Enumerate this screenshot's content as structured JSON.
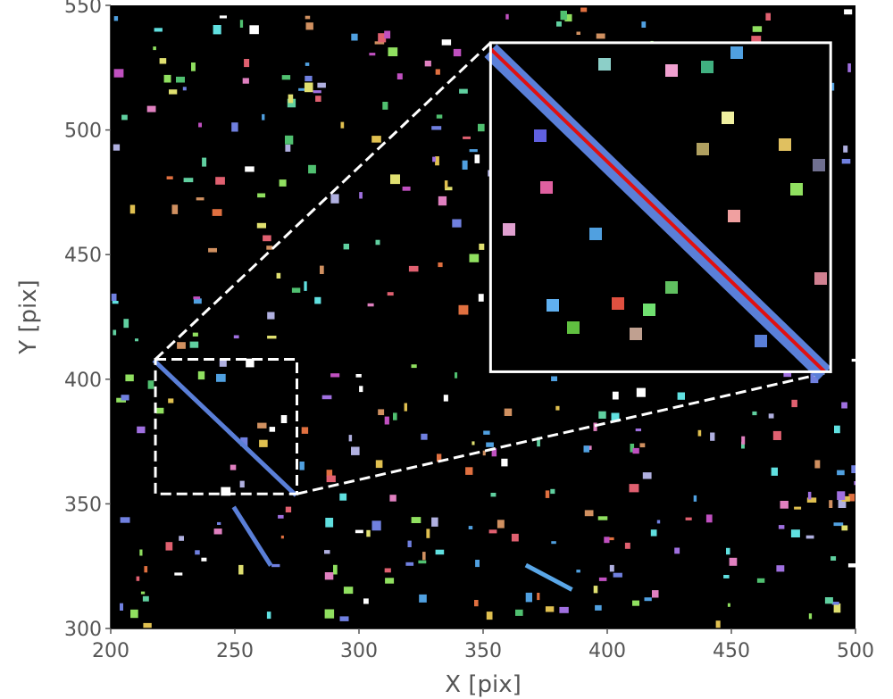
{
  "chart_data": {
    "type": "scatter",
    "title": "",
    "xlabel": "X [pix]",
    "ylabel": "Y [pix]",
    "xlim": [
      200,
      500
    ],
    "ylim": [
      300,
      550
    ],
    "xticks": [
      "200",
      "250",
      "300",
      "350",
      "400",
      "450",
      "500"
    ],
    "yticks": [
      "300",
      "350",
      "400",
      "450",
      "500",
      "550"
    ],
    "background_color": "#000000",
    "streak": {
      "detected_pixels_color": "#5a7fd8",
      "fit_line_color": "#e01010",
      "start": [
        218,
        407
      ],
      "end": [
        274,
        354
      ]
    },
    "secondary_streaks": [
      {
        "start": [
          250,
          348
        ],
        "end": [
          264,
          326
        ],
        "color": "#5a7fd8"
      },
      {
        "start": [
          368,
          325
        ],
        "end": [
          385,
          316
        ],
        "color": "#5aa7e8"
      }
    ],
    "zoom_region": {
      "x": [
        218,
        275
      ],
      "y": [
        354,
        408
      ],
      "inset_color": "#ffffff"
    },
    "inset": {
      "x": [
        353,
        490
      ],
      "y": [
        403,
        535
      ]
    },
    "legend": "none",
    "grid": false
  }
}
